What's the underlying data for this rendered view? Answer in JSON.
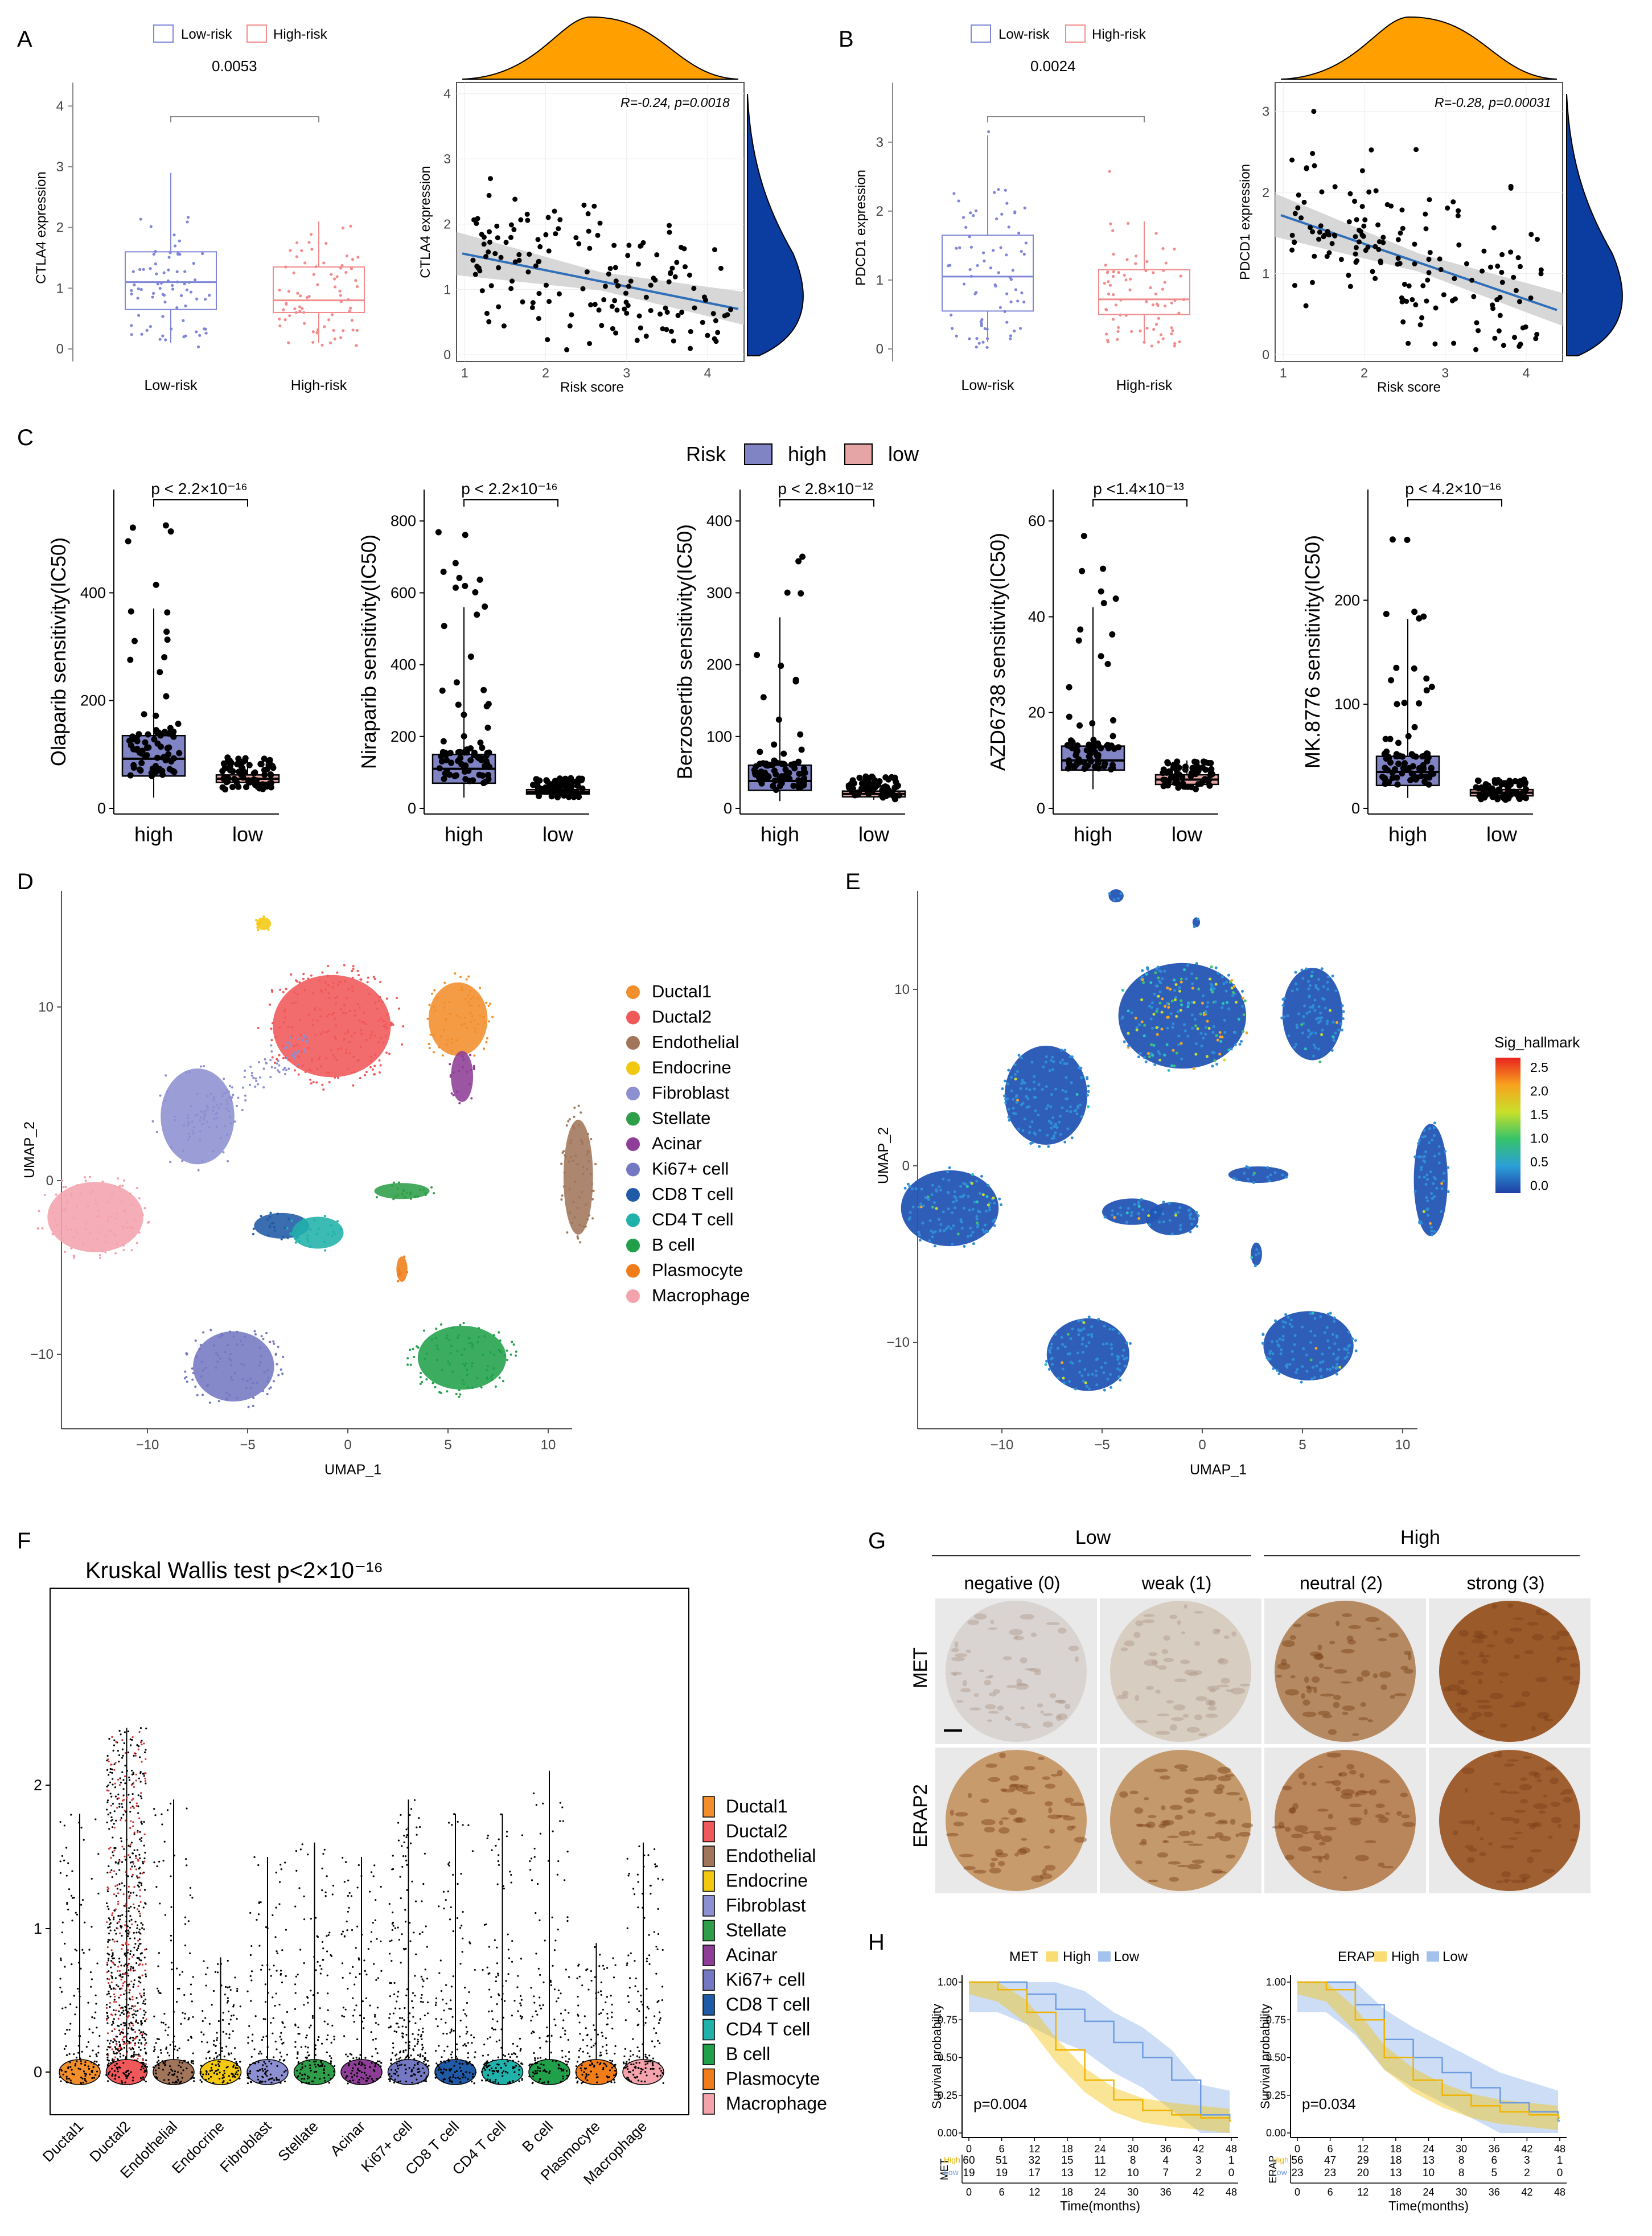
{
  "panels": {
    "A": "A",
    "B": "B",
    "C": "C",
    "D": "D",
    "E": "E",
    "F": "F",
    "G": "G",
    "H": "H"
  },
  "colors": {
    "low_risk": "#7f86d8",
    "high_risk": "#f28c8c",
    "box_high": "#8083c4",
    "box_low": "#e6a5a5",
    "density": "#ffa000",
    "density_blue": "#0b3da0",
    "trend": "#2f6eb8",
    "met_high": "#f5c518",
    "met_low": "#8fb3e8"
  },
  "panel_a": {
    "legend": [
      "Low-risk",
      "High-risk"
    ],
    "pvalue": "0.0053",
    "ylabel": "CTLA4 expression",
    "xcats": [
      "Low-risk",
      "High-risk"
    ],
    "yticks": [
      "0",
      "1",
      "2",
      "3",
      "4"
    ],
    "scatter": {
      "ylabel": "CTLA4 expression",
      "xlabel": "Risk score",
      "annot": "R=-0.24, p=0.0018",
      "xticks": [
        "1",
        "2",
        "3",
        "4"
      ],
      "yticks": [
        "0",
        "1",
        "2",
        "3",
        "4"
      ]
    }
  },
  "panel_b": {
    "legend": [
      "Low-risk",
      "High-risk"
    ],
    "pvalue": "0.0024",
    "ylabel": "PDCD1 expression",
    "xcats": [
      "Low-risk",
      "High-risk"
    ],
    "yticks": [
      "0",
      "1",
      "2",
      "3"
    ],
    "scatter": {
      "ylabel": "PDCD1 expression",
      "xlabel": "Risk score",
      "annot": "R=-0.28, p=0.00031",
      "xticks": [
        "1",
        "2",
        "3",
        "4"
      ],
      "yticks": [
        "0",
        "1",
        "2",
        "3"
      ]
    }
  },
  "panel_c": {
    "legend_title": "Risk",
    "legend": [
      "high",
      "low"
    ],
    "charts": [
      {
        "ylabel": "Olaparib sensitivity(IC50)",
        "p": "p < 2.2×10⁻¹⁶",
        "yticks": [
          "0",
          "200",
          "400"
        ],
        "ymax": 560
      },
      {
        "ylabel": "Niraparib sensitivity(IC50)",
        "p": "p < 2.2×10⁻¹⁶",
        "yticks": [
          "0",
          "200",
          "400",
          "600",
          "800"
        ],
        "ymax": 840
      },
      {
        "ylabel": "Berzosertib sensitivity(IC50)",
        "p": "p < 2.8×10⁻¹²",
        "yticks": [
          "0",
          "100",
          "200",
          "300",
          "400"
        ],
        "ymax": 420
      },
      {
        "ylabel": "AZD6738 sensitivity(IC50)",
        "p": "p <1.4×10⁻¹³",
        "yticks": [
          "0",
          "20",
          "40",
          "60"
        ],
        "ymax": 63
      },
      {
        "ylabel": "MK.8776 sensitivity(IC50)",
        "p": "p < 4.2×10⁻¹⁶",
        "yticks": [
          "0",
          "100",
          "200"
        ],
        "ymax": 290
      }
    ],
    "xcats": [
      "high",
      "low"
    ]
  },
  "panel_d": {
    "xlabel": "UMAP_1",
    "ylabel": "UMAP_2",
    "xticks": [
      "−10",
      "−5",
      "0",
      "5",
      "10"
    ],
    "yticks": [
      "10",
      "0",
      "−10"
    ],
    "clusters": [
      {
        "name": "Ductal1",
        "color": "#f28e2b"
      },
      {
        "name": "Ductal2",
        "color": "#f0585a"
      },
      {
        "name": "Endothelial",
        "color": "#a1755a"
      },
      {
        "name": "Endocrine",
        "color": "#f2c811"
      },
      {
        "name": "Fibroblast",
        "color": "#8c8fd0"
      },
      {
        "name": "Stellate",
        "color": "#2e9e48"
      },
      {
        "name": "Acinar",
        "color": "#8e3e96"
      },
      {
        "name": "Ki67+ cell",
        "color": "#7478c2"
      },
      {
        "name": "CD8 T cell",
        "color": "#1f5aa6"
      },
      {
        "name": "CD4 T cell",
        "color": "#20b2aa"
      },
      {
        "name": "B cell",
        "color": "#21a04a"
      },
      {
        "name": "Plasmocyte",
        "color": "#f07d1a"
      },
      {
        "name": "Macrophage",
        "color": "#f4a3ad"
      }
    ]
  },
  "panel_e": {
    "xlabel": "UMAP_1",
    "ylabel": "UMAP_2",
    "xticks": [
      "−10",
      "−5",
      "0",
      "5",
      "10"
    ],
    "yticks": [
      "10",
      "0",
      "−10"
    ],
    "legend_title": "Sig_hallmark",
    "scale": [
      "2.5",
      "2.0",
      "1.5",
      "1.0",
      "0.5",
      "0.0"
    ]
  },
  "panel_f": {
    "title": "Kruskal Wallis test p<2×10⁻¹⁶",
    "yticks": [
      "0",
      "1",
      "2"
    ],
    "cats": [
      "Ductal1",
      "Ductal2",
      "Endothelial",
      "Endocrine",
      "Fibroblast",
      "Stellate",
      "Acinar",
      "Ki67+ cell",
      "CD8 T cell",
      "CD4 T cell",
      "B cell",
      "Plasmocyte",
      "Macrophage"
    ],
    "max_values": [
      1.8,
      2.4,
      1.9,
      0.8,
      1.5,
      1.6,
      1.5,
      1.9,
      1.8,
      1.8,
      2.1,
      0.9,
      1.6
    ]
  },
  "panel_g": {
    "groups": [
      "Low",
      "High"
    ],
    "cols": [
      "negative (0)",
      "weak (1)",
      "neutral (2)",
      "strong (3)"
    ],
    "rows": [
      "MET",
      "ERAP2"
    ]
  },
  "panel_h": {
    "plots": [
      {
        "gene": "MET",
        "legend_high": "High",
        "legend_low": "Low",
        "p": "p=0.004",
        "ylabel": "Survival probability",
        "xlabel": "Time(months)",
        "yticks": [
          "0.00",
          "0.25",
          "0.50",
          "0.75",
          "1.00"
        ],
        "xticks": [
          "0",
          "6",
          "12",
          "18",
          "24",
          "30",
          "36",
          "42",
          "48"
        ],
        "risk_high": [
          "60",
          "51",
          "32",
          "15",
          "11",
          "8",
          "4",
          "3",
          "1"
        ],
        "risk_low": [
          "19",
          "19",
          "17",
          "13",
          "12",
          "10",
          "7",
          "2",
          "0"
        ],
        "risk_label": "MET",
        "rh": "High",
        "rl": "Low"
      },
      {
        "gene": "ERAP",
        "legend_high": "High",
        "legend_low": "Low",
        "p": "p=0.034",
        "ylabel": "Survival probability",
        "xlabel": "Time(months)",
        "yticks": [
          "0.00",
          "0.25",
          "0.50",
          "0.75",
          "1.00"
        ],
        "xticks": [
          "0",
          "6",
          "12",
          "18",
          "24",
          "30",
          "36",
          "42",
          "48"
        ],
        "risk_high": [
          "56",
          "47",
          "29",
          "18",
          "13",
          "8",
          "6",
          "3",
          "1"
        ],
        "risk_low": [
          "23",
          "23",
          "20",
          "13",
          "10",
          "8",
          "5",
          "2",
          "0"
        ],
        "risk_label": "ERAP",
        "rh": "High",
        "rl": "Low"
      }
    ]
  }
}
